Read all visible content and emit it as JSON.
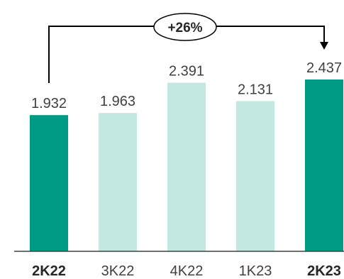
{
  "chart_data": {
    "type": "bar",
    "categories": [
      "2K22",
      "3K22",
      "4K22",
      "1K23",
      "2K23"
    ],
    "values": [
      1.932,
      1.963,
      2.391,
      2.131,
      2.437
    ],
    "value_labels": [
      "1.932",
      "1.963",
      "2.391",
      "2.131",
      "2.437"
    ],
    "highlighted": [
      true,
      false,
      false,
      false,
      true
    ],
    "ylim": [
      0,
      2.437
    ],
    "grid": false,
    "legend": false,
    "annotation": {
      "text": "+26%",
      "from_category": "2K22",
      "to_category": "2K23"
    }
  },
  "colors": {
    "highlight": "#009B84",
    "normal": "#C3E8E2",
    "axis": "#404040",
    "text": "#404040",
    "connector": "#000000"
  }
}
